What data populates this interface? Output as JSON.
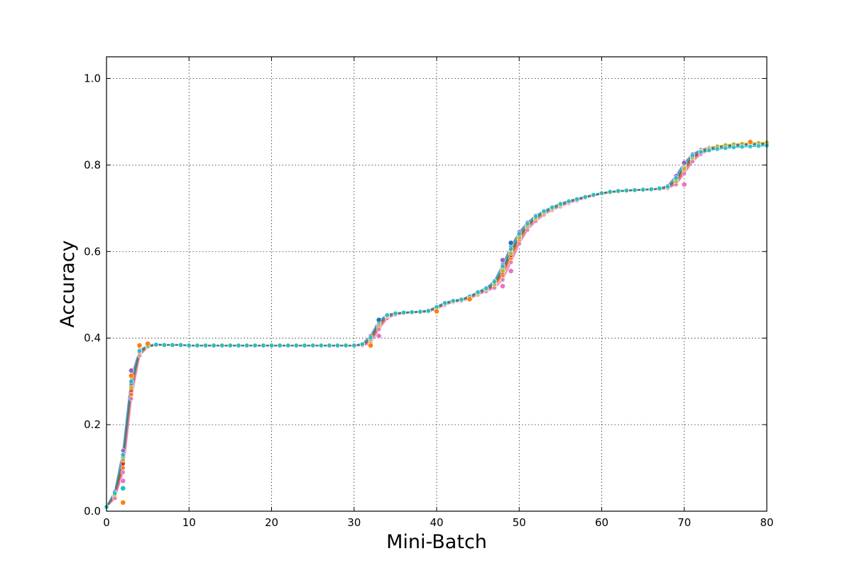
{
  "chart_data": {
    "type": "line",
    "title": "",
    "xlabel": "Mini-Batch",
    "ylabel": "Accuracy",
    "xlim": [
      0,
      80
    ],
    "ylim": [
      0.0,
      1.05
    ],
    "xticks": [
      0,
      10,
      20,
      30,
      40,
      50,
      60,
      70,
      80
    ],
    "xtick_labels": [
      "0",
      "10",
      "20",
      "30",
      "40",
      "50",
      "60",
      "70",
      "80"
    ],
    "yticks": [
      0.0,
      0.2,
      0.4,
      0.6,
      0.8,
      1.0
    ],
    "ytick_labels": [
      "0.0",
      "0.2",
      "0.4",
      "0.6",
      "0.8",
      "1.0"
    ],
    "grid": true,
    "legend": "none",
    "markers": "circle",
    "x": [
      0,
      1,
      2,
      3,
      4,
      5,
      6,
      7,
      8,
      9,
      10,
      11,
      12,
      13,
      14,
      15,
      16,
      17,
      18,
      19,
      20,
      21,
      22,
      23,
      24,
      25,
      26,
      27,
      28,
      29,
      30,
      31,
      32,
      33,
      34,
      35,
      36,
      37,
      38,
      39,
      40,
      41,
      42,
      43,
      44,
      45,
      46,
      47,
      48,
      49,
      50,
      51,
      52,
      53,
      54,
      55,
      56,
      57,
      58,
      59,
      60,
      61,
      62,
      63,
      64,
      65,
      66,
      67,
      68,
      69,
      70,
      71,
      72,
      73,
      74,
      75,
      76,
      77,
      78,
      79,
      80
    ],
    "series": [
      {
        "color": "#1f77b4",
        "values": [
          0.01,
          0.04,
          0.12,
          0.29,
          0.37,
          0.38,
          0.385,
          0.384,
          0.384,
          0.384,
          0.383,
          0.383,
          0.383,
          0.383,
          0.383,
          0.383,
          0.383,
          0.383,
          0.383,
          0.383,
          0.383,
          0.383,
          0.383,
          0.383,
          0.383,
          0.383,
          0.383,
          0.383,
          0.383,
          0.383,
          0.383,
          0.385,
          0.4,
          0.435,
          0.452,
          0.457,
          0.459,
          0.46,
          0.461,
          0.462,
          0.47,
          0.48,
          0.485,
          0.488,
          0.495,
          0.505,
          0.513,
          0.525,
          0.56,
          0.6,
          0.635,
          0.66,
          0.678,
          0.69,
          0.7,
          0.708,
          0.715,
          0.72,
          0.726,
          0.73,
          0.735,
          0.738,
          0.74,
          0.741,
          0.742,
          0.743,
          0.744,
          0.745,
          0.748,
          0.765,
          0.795,
          0.818,
          0.83,
          0.836,
          0.84,
          0.842,
          0.844,
          0.846,
          0.847,
          0.848,
          0.848
        ]
      },
      {
        "color": "#ff7f0e",
        "values": [
          0.01,
          0.03,
          0.1,
          0.27,
          0.36,
          0.38,
          0.384,
          0.384,
          0.384,
          0.384,
          0.383,
          0.383,
          0.383,
          0.383,
          0.383,
          0.383,
          0.383,
          0.383,
          0.383,
          0.383,
          0.383,
          0.383,
          0.383,
          0.383,
          0.383,
          0.383,
          0.383,
          0.383,
          0.383,
          0.383,
          0.383,
          0.384,
          0.39,
          0.425,
          0.448,
          0.455,
          0.458,
          0.459,
          0.46,
          0.461,
          0.468,
          0.478,
          0.484,
          0.487,
          0.493,
          0.502,
          0.51,
          0.52,
          0.545,
          0.585,
          0.625,
          0.655,
          0.674,
          0.688,
          0.698,
          0.706,
          0.714,
          0.72,
          0.725,
          0.73,
          0.734,
          0.737,
          0.739,
          0.741,
          0.742,
          0.743,
          0.744,
          0.745,
          0.747,
          0.758,
          0.785,
          0.812,
          0.828,
          0.836,
          0.841,
          0.845,
          0.847,
          0.849,
          0.85,
          0.85,
          0.851
        ]
      },
      {
        "color": "#2ca02c",
        "values": [
          0.01,
          0.04,
          0.13,
          0.3,
          0.37,
          0.382,
          0.385,
          0.384,
          0.384,
          0.384,
          0.383,
          0.383,
          0.383,
          0.383,
          0.383,
          0.383,
          0.383,
          0.383,
          0.383,
          0.383,
          0.383,
          0.383,
          0.383,
          0.383,
          0.383,
          0.383,
          0.383,
          0.383,
          0.383,
          0.383,
          0.383,
          0.386,
          0.402,
          0.438,
          0.453,
          0.457,
          0.459,
          0.46,
          0.461,
          0.463,
          0.472,
          0.481,
          0.486,
          0.489,
          0.496,
          0.506,
          0.514,
          0.528,
          0.565,
          0.605,
          0.64,
          0.663,
          0.68,
          0.692,
          0.702,
          0.71,
          0.717,
          0.722,
          0.727,
          0.731,
          0.735,
          0.738,
          0.74,
          0.741,
          0.742,
          0.743,
          0.744,
          0.745,
          0.749,
          0.768,
          0.8,
          0.822,
          0.833,
          0.839,
          0.843,
          0.845,
          0.847,
          0.848,
          0.849,
          0.849,
          0.85
        ]
      },
      {
        "color": "#d62728",
        "values": [
          0.01,
          0.035,
          0.11,
          0.28,
          0.365,
          0.38,
          0.384,
          0.384,
          0.384,
          0.384,
          0.383,
          0.383,
          0.383,
          0.383,
          0.383,
          0.383,
          0.383,
          0.383,
          0.383,
          0.383,
          0.383,
          0.383,
          0.383,
          0.383,
          0.383,
          0.383,
          0.383,
          0.383,
          0.383,
          0.383,
          0.383,
          0.384,
          0.395,
          0.43,
          0.45,
          0.456,
          0.458,
          0.459,
          0.46,
          0.462,
          0.47,
          0.479,
          0.485,
          0.488,
          0.494,
          0.503,
          0.511,
          0.522,
          0.552,
          0.592,
          0.63,
          0.657,
          0.676,
          0.689,
          0.699,
          0.707,
          0.714,
          0.72,
          0.725,
          0.73,
          0.734,
          0.737,
          0.739,
          0.741,
          0.742,
          0.743,
          0.744,
          0.745,
          0.747,
          0.76,
          0.79,
          0.815,
          0.83,
          0.837,
          0.842,
          0.845,
          0.847,
          0.848,
          0.849,
          0.85,
          0.85
        ]
      },
      {
        "color": "#9467bd",
        "values": [
          0.01,
          0.045,
          0.14,
          0.31,
          0.372,
          0.383,
          0.386,
          0.384,
          0.384,
          0.384,
          0.383,
          0.383,
          0.383,
          0.383,
          0.383,
          0.383,
          0.383,
          0.383,
          0.383,
          0.383,
          0.383,
          0.383,
          0.383,
          0.383,
          0.383,
          0.383,
          0.383,
          0.383,
          0.383,
          0.383,
          0.383,
          0.387,
          0.405,
          0.44,
          0.454,
          0.458,
          0.459,
          0.46,
          0.462,
          0.464,
          0.473,
          0.482,
          0.487,
          0.49,
          0.497,
          0.507,
          0.516,
          0.532,
          0.57,
          0.612,
          0.645,
          0.667,
          0.683,
          0.694,
          0.703,
          0.711,
          0.717,
          0.722,
          0.727,
          0.731,
          0.735,
          0.738,
          0.74,
          0.741,
          0.742,
          0.743,
          0.744,
          0.746,
          0.752,
          0.775,
          0.805,
          0.825,
          0.835,
          0.84,
          0.843,
          0.845,
          0.846,
          0.847,
          0.848,
          0.848,
          0.849
        ]
      },
      {
        "color": "#8c564b",
        "values": [
          0.01,
          0.04,
          0.12,
          0.29,
          0.368,
          0.381,
          0.385,
          0.384,
          0.384,
          0.384,
          0.383,
          0.383,
          0.383,
          0.383,
          0.383,
          0.383,
          0.383,
          0.383,
          0.383,
          0.383,
          0.383,
          0.383,
          0.383,
          0.383,
          0.383,
          0.383,
          0.383,
          0.383,
          0.383,
          0.383,
          0.383,
          0.385,
          0.398,
          0.433,
          0.451,
          0.456,
          0.458,
          0.459,
          0.46,
          0.462,
          0.471,
          0.48,
          0.485,
          0.488,
          0.495,
          0.504,
          0.512,
          0.526,
          0.558,
          0.598,
          0.634,
          0.659,
          0.677,
          0.69,
          0.7,
          0.708,
          0.715,
          0.721,
          0.726,
          0.73,
          0.734,
          0.737,
          0.739,
          0.741,
          0.742,
          0.743,
          0.744,
          0.745,
          0.748,
          0.764,
          0.794,
          0.818,
          0.831,
          0.837,
          0.841,
          0.844,
          0.846,
          0.848,
          0.849,
          0.849,
          0.85
        ]
      },
      {
        "color": "#e377c2",
        "values": [
          0.01,
          0.03,
          0.09,
          0.26,
          0.36,
          0.379,
          0.384,
          0.384,
          0.384,
          0.384,
          0.383,
          0.383,
          0.383,
          0.383,
          0.383,
          0.383,
          0.383,
          0.383,
          0.383,
          0.383,
          0.383,
          0.383,
          0.383,
          0.383,
          0.383,
          0.383,
          0.383,
          0.383,
          0.383,
          0.383,
          0.383,
          0.383,
          0.388,
          0.42,
          0.446,
          0.454,
          0.457,
          0.459,
          0.46,
          0.461,
          0.467,
          0.477,
          0.483,
          0.486,
          0.491,
          0.5,
          0.508,
          0.516,
          0.535,
          0.575,
          0.618,
          0.65,
          0.67,
          0.685,
          0.696,
          0.704,
          0.712,
          0.718,
          0.724,
          0.729,
          0.733,
          0.736,
          0.739,
          0.74,
          0.741,
          0.742,
          0.743,
          0.744,
          0.746,
          0.755,
          0.78,
          0.808,
          0.825,
          0.834,
          0.84,
          0.844,
          0.846,
          0.848,
          0.849,
          0.85,
          0.851
        ]
      },
      {
        "color": "#7f7f7f",
        "values": [
          0.01,
          0.04,
          0.125,
          0.295,
          0.369,
          0.381,
          0.385,
          0.384,
          0.384,
          0.384,
          0.383,
          0.383,
          0.383,
          0.383,
          0.383,
          0.383,
          0.383,
          0.383,
          0.383,
          0.383,
          0.383,
          0.383,
          0.383,
          0.383,
          0.383,
          0.383,
          0.383,
          0.383,
          0.383,
          0.383,
          0.383,
          0.386,
          0.4,
          0.436,
          0.452,
          0.457,
          0.459,
          0.46,
          0.461,
          0.463,
          0.471,
          0.481,
          0.486,
          0.489,
          0.496,
          0.505,
          0.514,
          0.528,
          0.562,
          0.602,
          0.637,
          0.661,
          0.679,
          0.691,
          0.701,
          0.709,
          0.716,
          0.721,
          0.726,
          0.731,
          0.735,
          0.738,
          0.74,
          0.741,
          0.742,
          0.743,
          0.744,
          0.745,
          0.749,
          0.767,
          0.798,
          0.82,
          0.832,
          0.838,
          0.842,
          0.845,
          0.847,
          0.848,
          0.849,
          0.849,
          0.85
        ]
      },
      {
        "color": "#bcbd22",
        "values": [
          0.01,
          0.038,
          0.118,
          0.285,
          0.366,
          0.38,
          0.384,
          0.384,
          0.384,
          0.384,
          0.383,
          0.383,
          0.383,
          0.383,
          0.383,
          0.383,
          0.383,
          0.383,
          0.383,
          0.383,
          0.383,
          0.383,
          0.383,
          0.383,
          0.383,
          0.383,
          0.383,
          0.383,
          0.383,
          0.383,
          0.383,
          0.385,
          0.397,
          0.432,
          0.451,
          0.456,
          0.458,
          0.459,
          0.46,
          0.462,
          0.47,
          0.48,
          0.485,
          0.488,
          0.494,
          0.503,
          0.512,
          0.524,
          0.555,
          0.596,
          0.632,
          0.658,
          0.676,
          0.689,
          0.699,
          0.707,
          0.715,
          0.721,
          0.726,
          0.73,
          0.734,
          0.737,
          0.739,
          0.741,
          0.742,
          0.743,
          0.744,
          0.745,
          0.748,
          0.762,
          0.792,
          0.817,
          0.831,
          0.838,
          0.843,
          0.846,
          0.848,
          0.849,
          0.85,
          0.851,
          0.852
        ]
      },
      {
        "color": "#17becf",
        "values": [
          0.01,
          0.042,
          0.13,
          0.3,
          0.37,
          0.382,
          0.385,
          0.384,
          0.384,
          0.384,
          0.383,
          0.383,
          0.383,
          0.383,
          0.383,
          0.383,
          0.383,
          0.383,
          0.383,
          0.383,
          0.383,
          0.383,
          0.383,
          0.383,
          0.383,
          0.383,
          0.383,
          0.383,
          0.383,
          0.383,
          0.383,
          0.386,
          0.401,
          0.437,
          0.453,
          0.457,
          0.459,
          0.46,
          0.461,
          0.463,
          0.472,
          0.481,
          0.486,
          0.489,
          0.496,
          0.506,
          0.515,
          0.53,
          0.566,
          0.606,
          0.641,
          0.664,
          0.681,
          0.693,
          0.702,
          0.71,
          0.716,
          0.721,
          0.726,
          0.731,
          0.735,
          0.738,
          0.74,
          0.741,
          0.742,
          0.743,
          0.744,
          0.746,
          0.75,
          0.77,
          0.802,
          0.822,
          0.83,
          0.834,
          0.837,
          0.839,
          0.841,
          0.842,
          0.843,
          0.844,
          0.845
        ]
      }
    ],
    "scatter_outliers": [
      {
        "x": 2,
        "y": 0.053,
        "color": "#17becf"
      },
      {
        "x": 2,
        "y": 0.02,
        "color": "#ff7f0e"
      },
      {
        "x": 2,
        "y": 0.07,
        "color": "#e377c2"
      },
      {
        "x": 3,
        "y": 0.313,
        "color": "#ff7f0e"
      },
      {
        "x": 3,
        "y": 0.325,
        "color": "#9467bd"
      },
      {
        "x": 4,
        "y": 0.383,
        "color": "#ff7f0e"
      },
      {
        "x": 5,
        "y": 0.387,
        "color": "#ff7f0e"
      },
      {
        "x": 32,
        "y": 0.383,
        "color": "#ff7f0e"
      },
      {
        "x": 33,
        "y": 0.442,
        "color": "#1f77b4"
      },
      {
        "x": 33,
        "y": 0.405,
        "color": "#e377c2"
      },
      {
        "x": 40,
        "y": 0.462,
        "color": "#ff7f0e"
      },
      {
        "x": 44,
        "y": 0.49,
        "color": "#ff7f0e"
      },
      {
        "x": 48,
        "y": 0.52,
        "color": "#e377c2"
      },
      {
        "x": 48,
        "y": 0.58,
        "color": "#9467bd"
      },
      {
        "x": 49,
        "y": 0.555,
        "color": "#e377c2"
      },
      {
        "x": 49,
        "y": 0.62,
        "color": "#1f77b4"
      },
      {
        "x": 70,
        "y": 0.805,
        "color": "#9467bd"
      },
      {
        "x": 70,
        "y": 0.755,
        "color": "#e377c2"
      },
      {
        "x": 78,
        "y": 0.853,
        "color": "#ff7f0e"
      }
    ]
  }
}
